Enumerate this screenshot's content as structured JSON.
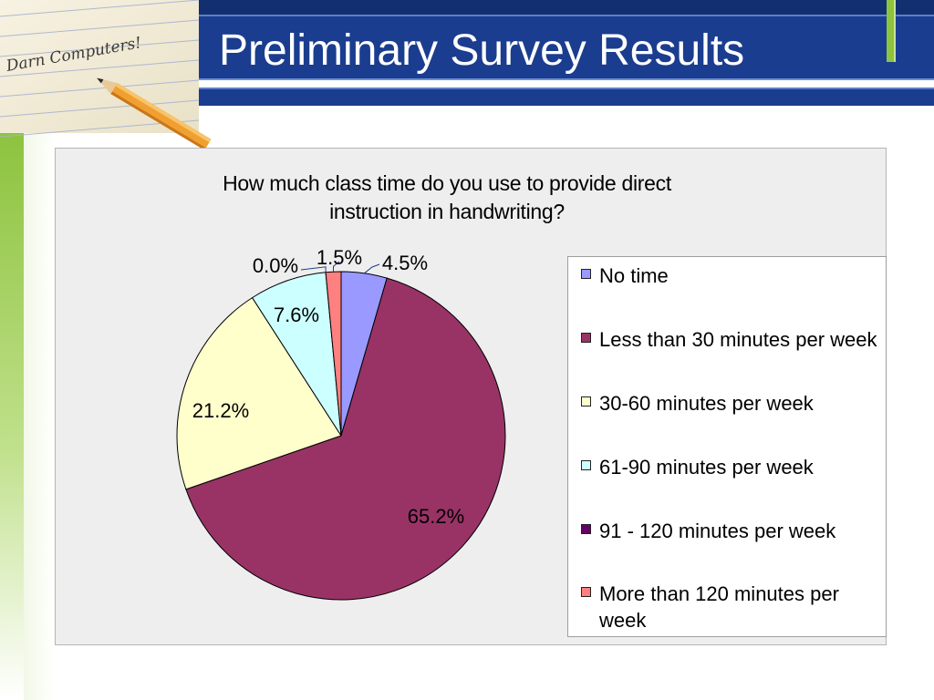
{
  "slide": {
    "title": "Preliminary Survey Results"
  },
  "colors": {
    "header_blue": "#1b3d8f",
    "header_dark": "#12306f",
    "accent_green": "#8dc33e",
    "panel_bg": "#eeeeee"
  },
  "decorative_image": {
    "handwritten_text": "Darn Computers!"
  },
  "chart_data": {
    "type": "pie",
    "title": "How much class time do you use to provide direct instruction in handwriting?",
    "title_lines": [
      "How much class time do you use to provide direct",
      "instruction in handwriting?"
    ],
    "unit": "%",
    "legend_placement": "right",
    "slices": [
      {
        "label": "No time",
        "value": 4.5,
        "label_text": "4.5%",
        "color": "#9999ff"
      },
      {
        "label": "Less than 30 minutes per week",
        "value": 65.2,
        "label_text": "65.2%",
        "color": "#993366"
      },
      {
        "label": "30-60 minutes per week",
        "value": 21.2,
        "label_text": "21.2%",
        "color": "#ffffcc"
      },
      {
        "label": "61-90 minutes per week",
        "value": 7.6,
        "label_text": "7.6%",
        "color": "#ccffff"
      },
      {
        "label": "91 - 120 minutes per week",
        "value": 0.0,
        "label_text": "0.0%",
        "color": "#660066"
      },
      {
        "label": "More than 120 minutes per week",
        "value": 1.5,
        "label_text": "1.5%",
        "color": "#ff8080"
      }
    ]
  }
}
